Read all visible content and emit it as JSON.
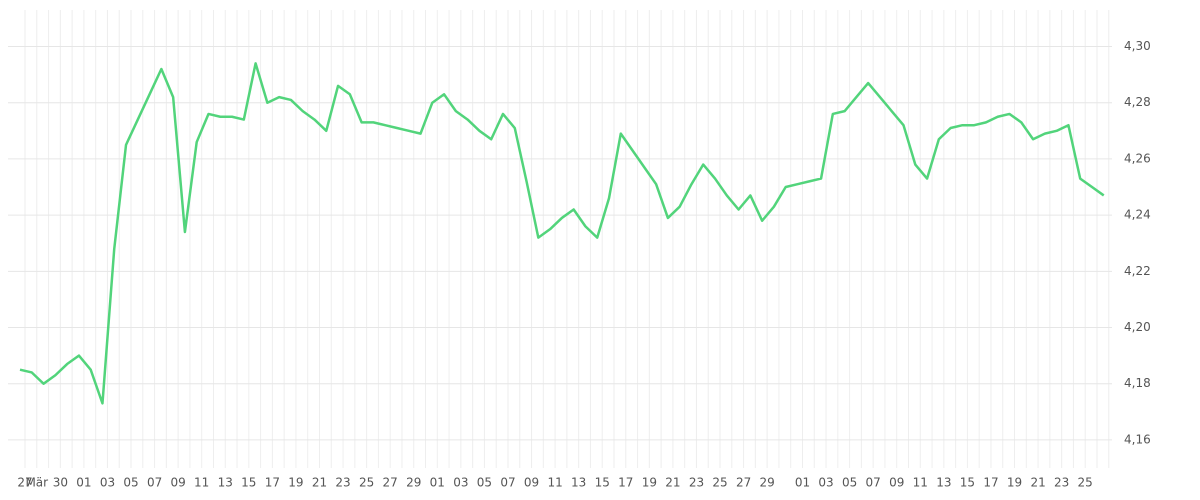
{
  "chart_data": {
    "type": "line",
    "categories": [
      "27",
      "Mär",
      null,
      "30",
      null,
      "01",
      null,
      "03",
      null,
      "05",
      null,
      "07",
      null,
      "09",
      null,
      "11",
      null,
      "13",
      null,
      "15",
      null,
      "17",
      null,
      "19",
      null,
      "21",
      null,
      "23",
      null,
      "25",
      null,
      "27",
      null,
      "29",
      null,
      "01",
      null,
      "03",
      null,
      "05",
      null,
      "07",
      null,
      "09",
      null,
      "11",
      null,
      "13",
      null,
      "15",
      null,
      "17",
      null,
      "19",
      null,
      "21",
      null,
      "23",
      null,
      "25",
      null,
      "27",
      null,
      "29",
      null,
      null,
      "01",
      null,
      "03",
      null,
      "05",
      null,
      "07",
      null,
      "09",
      null,
      "11",
      null,
      "13",
      null,
      "15",
      null,
      "17",
      null,
      "19",
      null,
      "21",
      null,
      "23",
      null,
      "25",
      null,
      null
    ],
    "series": [
      {
        "color": "#52d47b",
        "values": [
          4.185,
          4.184,
          4.18,
          4.183,
          4.187,
          4.19,
          4.185,
          4.173,
          4.228,
          4.265,
          4.274,
          4.283,
          4.292,
          4.282,
          4.234,
          4.266,
          4.276,
          4.275,
          4.275,
          4.274,
          4.294,
          4.28,
          4.282,
          4.281,
          4.277,
          4.274,
          4.27,
          4.286,
          4.283,
          4.273,
          4.273,
          4.272,
          4.271,
          4.27,
          4.269,
          4.28,
          4.283,
          4.277,
          4.274,
          4.27,
          4.267,
          4.276,
          4.271,
          4.252,
          4.232,
          4.235,
          4.239,
          4.242,
          4.236,
          4.232,
          4.246,
          4.269,
          4.263,
          4.257,
          4.251,
          4.239,
          4.243,
          4.251,
          4.258,
          4.253,
          4.247,
          4.242,
          4.247,
          4.238,
          4.243,
          4.25,
          4.251,
          4.252,
          4.253,
          4.276,
          4.277,
          4.282,
          4.287,
          4.282,
          4.277,
          4.272,
          4.258,
          4.253,
          4.267,
          4.271,
          4.272,
          4.272,
          4.273,
          4.275,
          4.276,
          4.273,
          4.267,
          4.269,
          4.27,
          4.272,
          4.253,
          4.25,
          4.247
        ]
      }
    ],
    "ylim": [
      4.15,
      4.313
    ],
    "yticks": [
      {
        "value": 4.16,
        "label": "4,16"
      },
      {
        "value": 4.18,
        "label": "4,18"
      },
      {
        "value": 4.2,
        "label": "4,20"
      },
      {
        "value": 4.22,
        "label": "4,22"
      },
      {
        "value": 4.24,
        "label": "4,24"
      },
      {
        "value": 4.26,
        "label": "4,26"
      },
      {
        "value": 4.28,
        "label": "4,28"
      },
      {
        "value": 4.3,
        "label": "4,30"
      }
    ],
    "grid": true
  }
}
